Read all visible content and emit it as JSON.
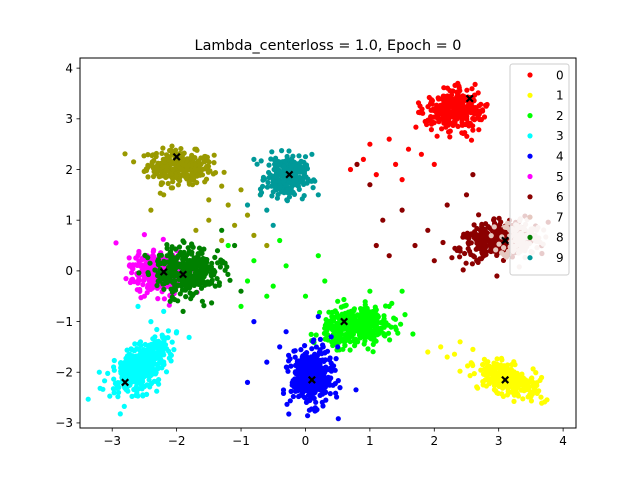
{
  "chart_data": {
    "type": "scatter",
    "title": "Lambda_centerloss = 1.0, Epoch = 0",
    "xlabel": "",
    "ylabel": "",
    "xlim": [
      -3.5,
      4.2
    ],
    "ylim": [
      -3.1,
      4.2
    ],
    "xticks": [
      -3,
      -2,
      -1,
      0,
      1,
      2,
      3,
      4
    ],
    "yticks": [
      -3,
      -2,
      -1,
      0,
      1,
      2,
      3,
      4
    ],
    "grid": false,
    "legend_position": "top-right",
    "series": [
      {
        "name": "0",
        "color": "#ff0000",
        "center": [
          2.3,
          3.15
        ],
        "spread": [
          0.22,
          0.2
        ],
        "angle": 35,
        "count": 300,
        "extras": [
          [
            1.6,
            2.4
          ],
          [
            1.4,
            2.1
          ],
          [
            1.1,
            1.9
          ],
          [
            0.9,
            2.2
          ],
          [
            1.0,
            2.5
          ],
          [
            1.8,
            2.3
          ],
          [
            1.3,
            2.6
          ],
          [
            0.7,
            2.0
          ],
          [
            1.5,
            1.8
          ],
          [
            2.0,
            2.1
          ]
        ]
      },
      {
        "name": "1",
        "color": "#ffff00",
        "center": [
          3.15,
          -2.15
        ],
        "spread": [
          0.26,
          0.13
        ],
        "angle": -30,
        "count": 280,
        "extras": [
          [
            2.4,
            -1.4
          ],
          [
            2.2,
            -1.7
          ],
          [
            2.6,
            -1.55
          ],
          [
            2.1,
            -1.5
          ],
          [
            1.9,
            -1.6
          ],
          [
            2.75,
            -1.85
          ]
        ]
      },
      {
        "name": "2",
        "color": "#00ff00",
        "center": [
          0.8,
          -1.1
        ],
        "spread": [
          0.26,
          0.17
        ],
        "angle": 10,
        "count": 420,
        "extras": [
          [
            -1.0,
            -0.7
          ],
          [
            -0.8,
            0.2
          ],
          [
            -0.5,
            -0.3
          ],
          [
            0.0,
            -0.5
          ],
          [
            0.3,
            -0.2
          ],
          [
            -1.2,
            0.5
          ],
          [
            0.5,
            -0.6
          ],
          [
            -0.3,
            0.1
          ],
          [
            -0.6,
            -0.5
          ],
          [
            1.3,
            -0.7
          ],
          [
            1.5,
            -0.4
          ],
          [
            -0.9,
            -0.2
          ],
          [
            -0.4,
            0.6
          ],
          [
            0.2,
            0.3
          ],
          [
            1.0,
            -0.4
          ]
        ]
      },
      {
        "name": "3",
        "color": "#00ffff",
        "center": [
          -2.55,
          -1.85
        ],
        "spread": [
          0.3,
          0.16
        ],
        "angle": 58,
        "count": 420,
        "extras": [
          [
            -2.4,
            -1.0
          ],
          [
            -2.2,
            -0.8
          ],
          [
            -2.6,
            -0.7
          ],
          [
            -3.2,
            -2.0
          ],
          [
            -2.9,
            -2.4
          ],
          [
            -2.0,
            -1.2
          ]
        ]
      },
      {
        "name": "4",
        "color": "#0000ff",
        "center": [
          0.1,
          -2.1
        ],
        "spread": [
          0.16,
          0.27
        ],
        "angle": 0,
        "count": 420,
        "extras": [
          [
            -0.6,
            -1.8
          ],
          [
            -0.4,
            -1.5
          ],
          [
            0.5,
            -1.5
          ],
          [
            -0.9,
            -2.2
          ],
          [
            -0.3,
            -1.2
          ],
          [
            0.4,
            -1.3
          ],
          [
            -0.8,
            -1.0
          ],
          [
            0.2,
            -0.9
          ]
        ]
      },
      {
        "name": "5",
        "color": "#ff00ff",
        "center": [
          -2.3,
          -0.05
        ],
        "spread": [
          0.2,
          0.22
        ],
        "angle": 20,
        "count": 300,
        "extras": [
          [
            -2.6,
            0.3
          ],
          [
            -2.0,
            0.4
          ],
          [
            -2.5,
            -0.5
          ]
        ]
      },
      {
        "name": "6",
        "color": "#8b0000",
        "center": [
          2.95,
          0.6
        ],
        "spread": [
          0.28,
          0.17
        ],
        "angle": 15,
        "count": 320,
        "extras": [
          [
            1.0,
            1.7
          ],
          [
            1.5,
            1.2
          ],
          [
            1.2,
            1.0
          ],
          [
            0.8,
            2.1
          ],
          [
            1.9,
            0.8
          ],
          [
            2.2,
            1.3
          ],
          [
            1.7,
            0.5
          ],
          [
            1.3,
            0.3
          ],
          [
            2.0,
            0.2
          ],
          [
            2.5,
            1.5
          ],
          [
            2.6,
            1.9
          ],
          [
            1.1,
            0.5
          ]
        ]
      },
      {
        "name": "7",
        "color": "#e6c8c0",
        "center": [
          3.35,
          0.65
        ],
        "spread": [
          0.16,
          0.2
        ],
        "angle": 0,
        "count": 120,
        "extras": []
      },
      {
        "name": "8",
        "color": "#008000",
        "center": [
          -1.85,
          0.0
        ],
        "spread": [
          0.24,
          0.24
        ],
        "angle": 20,
        "count": 360,
        "extras": [
          [
            -1.1,
            0.5
          ],
          [
            -1.3,
            0.8
          ],
          [
            -1.6,
            -0.6
          ],
          [
            -1.9,
            -0.8
          ],
          [
            -2.1,
            -0.6
          ],
          [
            -1.4,
            -0.3
          ],
          [
            -1.0,
            -0.4
          ]
        ]
      },
      {
        "name": "9",
        "color": "#009999",
        "center": [
          -0.3,
          1.85
        ],
        "spread": [
          0.15,
          0.2
        ],
        "angle": 0,
        "count": 260,
        "extras": [
          [
            -0.8,
            2.2
          ],
          [
            -0.7,
            1.5
          ],
          [
            0.2,
            1.5
          ],
          [
            -0.6,
            1.2
          ],
          [
            0.1,
            2.3
          ],
          [
            -0.9,
            1.3
          ],
          [
            -0.5,
            0.9
          ]
        ]
      }
    ],
    "olive_points_color": "#999900",
    "olive_cluster": {
      "center": [
        -1.95,
        2.05
      ],
      "spread": [
        0.25,
        0.16
      ],
      "angle": -5,
      "count": 300,
      "extras": [
        [
          -1.0,
          1.6
        ],
        [
          -1.2,
          1.3
        ],
        [
          -1.5,
          1.0
        ],
        [
          -1.7,
          0.8
        ],
        [
          -0.9,
          1.1
        ],
        [
          -0.8,
          0.7
        ],
        [
          -0.6,
          0.5
        ],
        [
          -1.3,
          0.6
        ],
        [
          -1.5,
          1.4
        ],
        [
          -2.2,
          1.5
        ],
        [
          -2.4,
          1.2
        ],
        [
          -0.7,
          1.5
        ],
        [
          -1.1,
          0.9
        ]
      ]
    },
    "centers": [
      {
        "label": "0",
        "x": 2.55,
        "y": 3.4
      },
      {
        "label": "1",
        "x": 3.1,
        "y": -2.15
      },
      {
        "label": "2",
        "x": 0.6,
        "y": -1.0
      },
      {
        "label": "3",
        "x": -2.8,
        "y": -2.2
      },
      {
        "label": "4",
        "x": 0.1,
        "y": -2.15
      },
      {
        "label": "5",
        "x": -2.2,
        "y": -0.02
      },
      {
        "label": "6",
        "x": 3.1,
        "y": 0.6
      },
      {
        "label": "7",
        "x": -2.0,
        "y": 2.25
      },
      {
        "label": "8",
        "x": -1.9,
        "y": -0.07
      },
      {
        "label": "9",
        "x": -0.25,
        "y": 1.9
      }
    ],
    "center_marker_color": "#000000"
  }
}
